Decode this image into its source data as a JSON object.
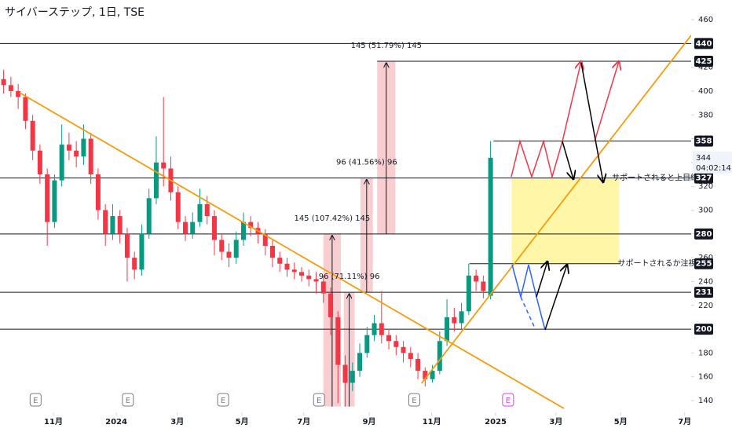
{
  "chart_data": {
    "type": "candlestick",
    "title": "サイバーステップ, 1日, TSE",
    "x": [
      0,
      1,
      2,
      3,
      4,
      5,
      6,
      7,
      8,
      9,
      10,
      11,
      12,
      13,
      14,
      15,
      16,
      17,
      18,
      19,
      20,
      21,
      22,
      23,
      24,
      25,
      26,
      27,
      28,
      29,
      30,
      31,
      32,
      33,
      34,
      35,
      36,
      37,
      38,
      39,
      40,
      41,
      42,
      43,
      44,
      45,
      46,
      47,
      48,
      49,
      50,
      51,
      52,
      53,
      54,
      55,
      56,
      57,
      58,
      59,
      60,
      61,
      62,
      63,
      64,
      65,
      66,
      67
    ],
    "open": [
      410,
      405,
      400,
      395,
      375,
      350,
      330,
      290,
      325,
      355,
      350,
      345,
      360,
      330,
      300,
      280,
      295,
      280,
      260,
      250,
      280,
      310,
      340,
      335,
      315,
      290,
      280,
      290,
      305,
      295,
      275,
      265,
      260,
      275,
      290,
      285,
      280,
      270,
      260,
      255,
      250,
      248,
      245,
      242,
      240,
      230,
      210,
      170,
      155,
      165,
      180,
      195,
      205,
      195,
      190,
      185,
      180,
      175,
      165,
      158,
      165,
      190,
      210,
      205,
      215,
      245,
      240,
      228
    ],
    "high": [
      418,
      412,
      406,
      398,
      380,
      355,
      335,
      330,
      372,
      365,
      358,
      372,
      365,
      335,
      305,
      305,
      300,
      285,
      265,
      288,
      318,
      362,
      395,
      345,
      320,
      295,
      298,
      318,
      312,
      300,
      280,
      272,
      282,
      298,
      295,
      290,
      284,
      275,
      265,
      260,
      256,
      252,
      250,
      248,
      245,
      235,
      215,
      178,
      172,
      188,
      202,
      212,
      232,
      200,
      195,
      190,
      185,
      180,
      168,
      170,
      198,
      225,
      218,
      222,
      255,
      250,
      245,
      358
    ],
    "low": [
      398,
      395,
      385,
      368,
      342,
      322,
      270,
      285,
      320,
      342,
      336,
      338,
      322,
      292,
      270,
      275,
      272,
      240,
      242,
      245,
      276,
      305,
      320,
      308,
      284,
      274,
      276,
      286,
      288,
      262,
      258,
      252,
      255,
      270,
      278,
      272,
      262,
      252,
      248,
      244,
      242,
      240,
      236,
      230,
      222,
      195,
      138,
      135,
      148,
      160,
      176,
      190,
      188,
      183,
      178,
      172,
      168,
      158,
      152,
      155,
      162,
      186,
      198,
      200,
      212,
      232,
      226,
      225
    ],
    "close": [
      405,
      400,
      395,
      375,
      350,
      330,
      290,
      325,
      355,
      350,
      345,
      360,
      330,
      300,
      280,
      295,
      280,
      260,
      250,
      280,
      310,
      340,
      335,
      315,
      290,
      280,
      290,
      305,
      295,
      275,
      265,
      260,
      275,
      290,
      285,
      280,
      270,
      260,
      255,
      250,
      248,
      245,
      242,
      240,
      230,
      210,
      170,
      155,
      165,
      180,
      195,
      205,
      195,
      190,
      185,
      180,
      175,
      165,
      158,
      165,
      190,
      210,
      205,
      215,
      245,
      240,
      232,
      344
    ],
    "up_color": "#089981",
    "down_color": "#f23645",
    "xlim": [
      -0.5,
      94.6
    ],
    "ylim": [
      140,
      460
    ],
    "xticks": [
      {
        "value": 6.85,
        "label": "11月"
      },
      {
        "value": 15.5,
        "label": "2024"
      },
      {
        "value": 23.9,
        "label": "3月"
      },
      {
        "value": 32.8,
        "label": "5月"
      },
      {
        "value": 41.3,
        "label": "7月"
      },
      {
        "value": 50.3,
        "label": "9月"
      },
      {
        "value": 58.9,
        "label": "11月"
      },
      {
        "value": 67.7,
        "label": "2025"
      },
      {
        "value": 76.0,
        "label": "3月"
      },
      {
        "value": 84.9,
        "label": "5月"
      },
      {
        "value": 93.7,
        "label": "7月"
      }
    ],
    "yticks": [
      140,
      160,
      180,
      200,
      220,
      240,
      260,
      280,
      300,
      320,
      340,
      360,
      380,
      400,
      420,
      440,
      460
    ],
    "countdown": "04:02:14",
    "levels": {
      "values": [
        440,
        425,
        358,
        327,
        280,
        255,
        231,
        200
      ],
      "start": [
        -0.5,
        51.4,
        67.4,
        -0.5,
        -0.5,
        64.1,
        -0.5,
        -0.5
      ],
      "end": [
        94.6,
        94.6,
        94.6,
        94.6,
        94.6,
        84.9,
        94.6,
        94.6
      ],
      "color": "#131722"
    },
    "trendlines": {
      "color": "#f59d0e",
      "lines": [
        {
          "x": [
            2.2,
            77.1
          ],
          "y": [
            398.6,
            133.4
          ]
        },
        {
          "x": [
            57.5,
            94.6
          ],
          "y": [
            154.5,
            446.8
          ]
        }
      ]
    },
    "measures": {
      "color": "#f7c5c9",
      "items": [
        {
          "label": "145 (107.42%) 145",
          "x": [
            44.0,
            46.4
          ],
          "range": [
            135,
            280
          ]
        },
        {
          "label": "96 (71.11%) 96",
          "x": [
            46.8,
            48.3
          ],
          "range": [
            135,
            231
          ]
        },
        {
          "label": "96 (41.56%) 96",
          "x": [
            49.1,
            50.8
          ],
          "range": [
            231,
            327
          ]
        },
        {
          "label": "145 (51.79%) 145",
          "x": [
            51.4,
            53.9
          ],
          "range": [
            280,
            425
          ]
        }
      ]
    },
    "zone": {
      "x": [
        69.9,
        84.7
      ],
      "range": [
        255,
        327
      ],
      "color": "#fff59d"
    },
    "notes": [
      {
        "text": "サポートされると上目線",
        "x": 83.7,
        "y": 327
      },
      {
        "text": "サポートされるか注視",
        "x": 84.5,
        "y": 255
      }
    ],
    "events": [
      {
        "x": 4.4,
        "label": "E",
        "color": "#787b86"
      },
      {
        "x": 17.1,
        "label": "E",
        "color": "#787b86"
      },
      {
        "x": 30.2,
        "label": "E",
        "color": "#787b86"
      },
      {
        "x": 43.4,
        "label": "E",
        "color": "#787b86"
      },
      {
        "x": 56.5,
        "label": "E",
        "color": "#787b86"
      },
      {
        "x": 69.4,
        "label": "E",
        "color": "#e040fb"
      }
    ]
  }
}
